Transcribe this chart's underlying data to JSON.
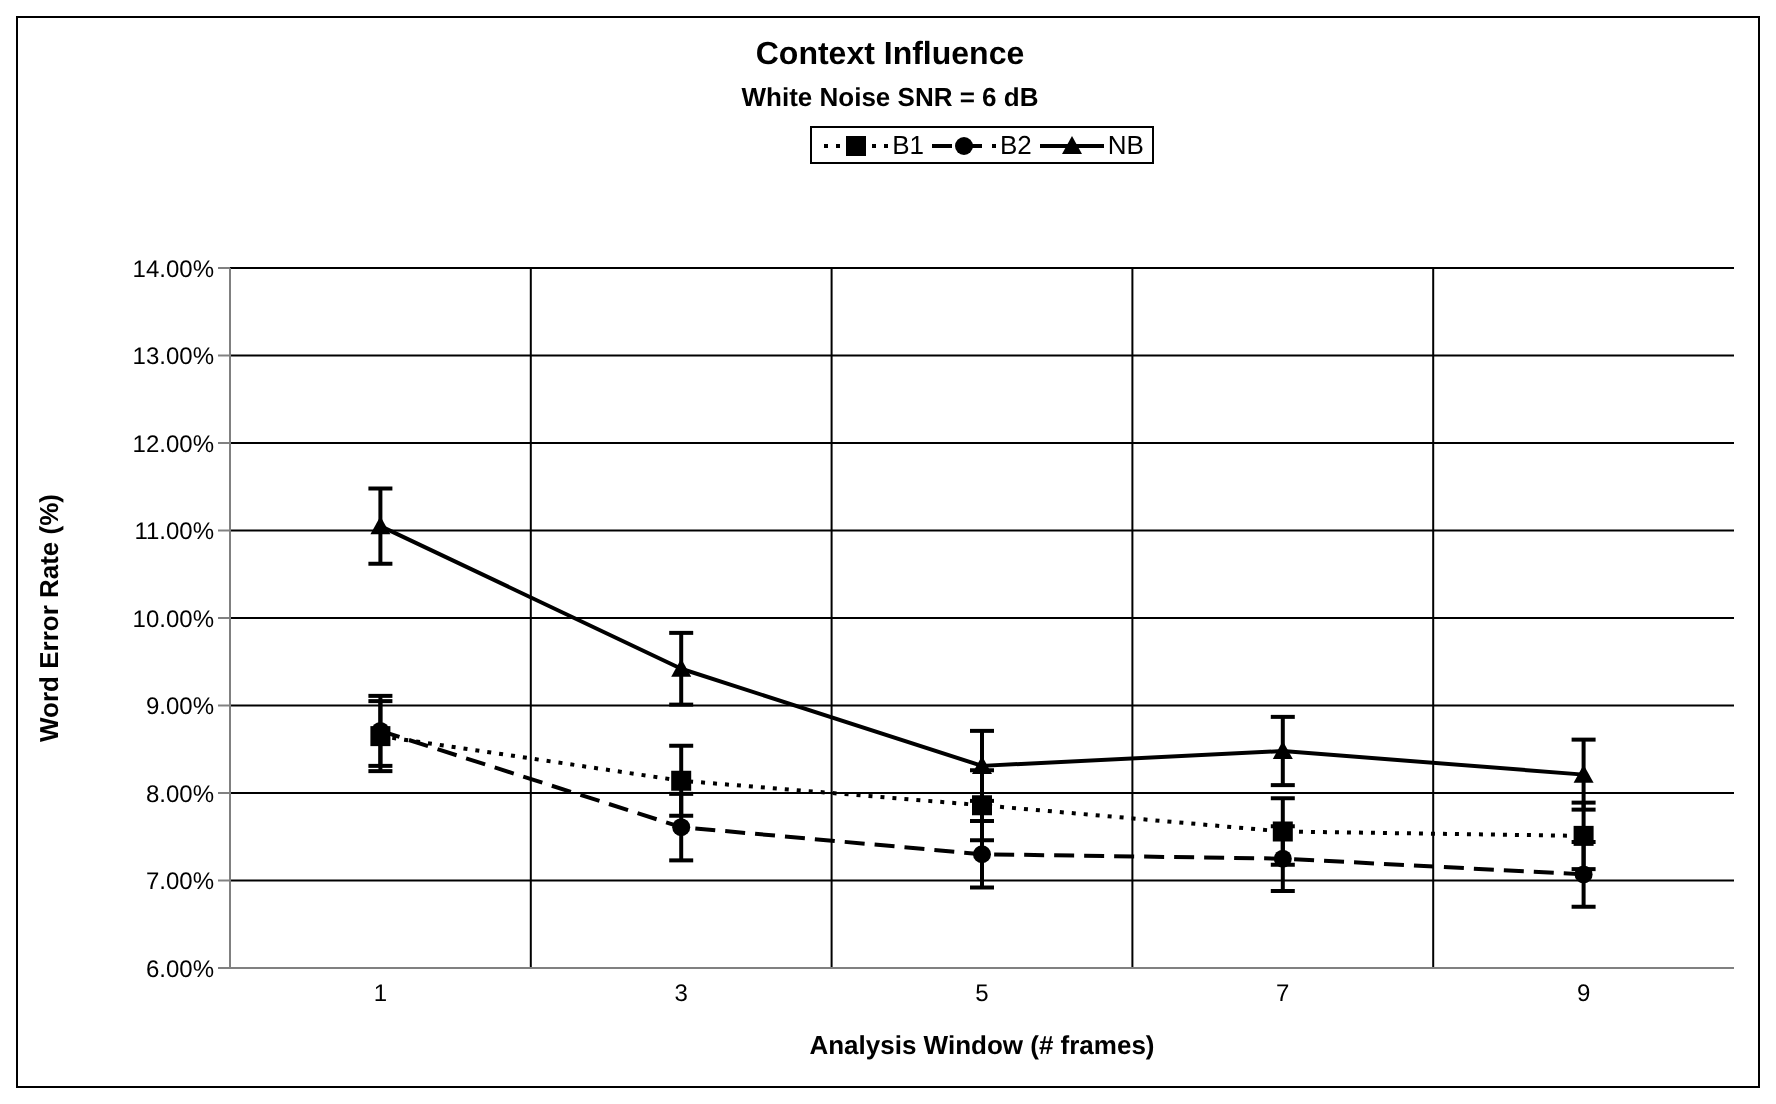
{
  "chart_data": {
    "type": "line",
    "title": "Context Influence",
    "subtitle": "White Noise SNR = 6 dB",
    "xlabel": "Analysis Window (# frames)",
    "ylabel": "Word Error Rate (%)",
    "categories": [
      "1",
      "3",
      "5",
      "7",
      "9"
    ],
    "series": [
      {
        "name": "B1",
        "color": "#000000",
        "marker": "square",
        "line_style": "dotted",
        "values": [
          8.65,
          8.14,
          7.86,
          7.56,
          7.51
        ],
        "errors": [
          0.4,
          0.4,
          0.4,
          0.38,
          0.38
        ]
      },
      {
        "name": "B2",
        "color": "#000000",
        "marker": "circle",
        "line_style": "dashed",
        "values": [
          8.71,
          7.61,
          7.3,
          7.25,
          7.07
        ],
        "errors": [
          0.4,
          0.38,
          0.38,
          0.37,
          0.37
        ]
      },
      {
        "name": "NB",
        "color": "#000000",
        "marker": "triangle",
        "line_style": "solid",
        "values": [
          11.05,
          9.42,
          8.31,
          8.48,
          8.21
        ],
        "errors": [
          0.43,
          0.41,
          0.4,
          0.39,
          0.4
        ]
      }
    ],
    "ylim": [
      6,
      14
    ],
    "yticks": [
      {
        "value": 6,
        "label": "6.00%"
      },
      {
        "value": 7,
        "label": "7.00%"
      },
      {
        "value": 8,
        "label": "8.00%"
      },
      {
        "value": 9,
        "label": "9.00%"
      },
      {
        "value": 10,
        "label": "10.00%"
      },
      {
        "value": 11,
        "label": "11.00%"
      },
      {
        "value": 12,
        "label": "12.00%"
      },
      {
        "value": 13,
        "label": "13.00%"
      },
      {
        "value": 14,
        "label": "14.00%"
      }
    ],
    "grid": true,
    "legend": "top"
  }
}
